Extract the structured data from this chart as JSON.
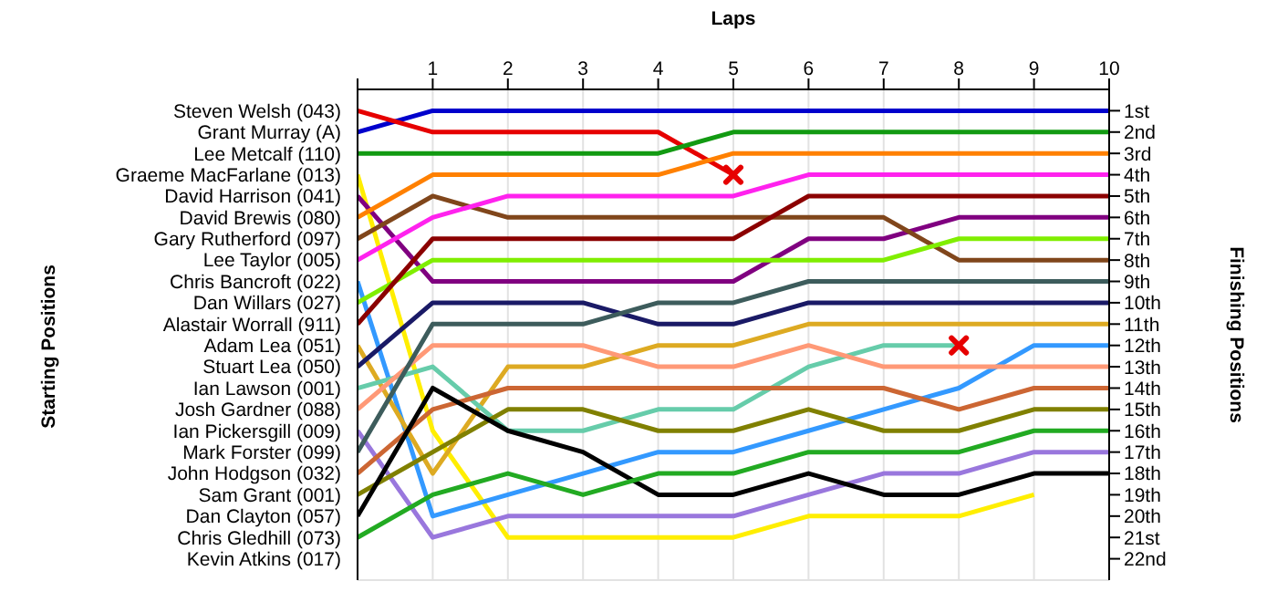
{
  "chart_data": {
    "type": "line",
    "xlabel": "Laps",
    "ylabel": "Finishing Positions",
    "x": [
      0,
      1,
      2,
      3,
      4,
      5,
      6,
      7,
      8,
      9,
      10
    ],
    "xlim": [
      0,
      10
    ],
    "xticks": [
      {
        "value": 0,
        "label": null
      },
      1,
      2,
      3,
      4,
      5,
      6,
      7,
      8,
      9,
      10
    ],
    "ylim": [
      23,
      0
    ],
    "yticks": [
      {
        "value": 1,
        "label": "1st"
      },
      {
        "value": 2,
        "label": "2nd"
      },
      {
        "value": 3,
        "label": "3rd"
      },
      {
        "value": 4,
        "label": "4th"
      },
      {
        "value": 5,
        "label": "5th"
      },
      {
        "value": 6,
        "label": "6th"
      },
      {
        "value": 7,
        "label": "7th"
      },
      {
        "value": 8,
        "label": "8th"
      },
      {
        "value": 9,
        "label": "9th"
      },
      {
        "value": 10,
        "label": "10th"
      },
      {
        "value": 11,
        "label": "11th"
      },
      {
        "value": 12,
        "label": "12th"
      },
      {
        "value": 13,
        "label": "13th"
      },
      {
        "value": 14,
        "label": "14th"
      },
      {
        "value": 15,
        "label": "15th"
      },
      {
        "value": 16,
        "label": "16th"
      },
      {
        "value": 17,
        "label": "17th"
      },
      {
        "value": 18,
        "label": "18th"
      },
      {
        "value": 19,
        "label": "19th"
      },
      {
        "value": 20,
        "label": "20th"
      },
      {
        "value": 21,
        "label": "21st"
      },
      {
        "value": 22,
        "label": "22nd"
      }
    ],
    "annotations": [
      "Starting Positions",
      "Kevin Atkins (017)"
    ],
    "grid": true,
    "legend": false,
    "marker": "none",
    "line_style": "solid",
    "series": [
      {
        "name": "Grant Murray (A)",
        "color": "#0000cc",
        "values": [
          2,
          1,
          1,
          1,
          1,
          1,
          1,
          1,
          1,
          1,
          1
        ]
      },
      {
        "name": "Steven Welsh (043)",
        "color": "#e60000",
        "values": [
          1,
          2,
          2,
          2,
          2,
          4,
          null,
          null,
          null,
          null,
          null
        ]
      },
      {
        "name": "Lee Metcalf (110)",
        "color": "#129a12",
        "values": [
          3,
          3,
          3,
          3,
          3,
          2,
          2,
          2,
          2,
          2,
          2
        ]
      },
      {
        "name": "Graeme MacFarlane (013)",
        "color": "#ffee00",
        "values": [
          4,
          16,
          21,
          21,
          21,
          21,
          20,
          20,
          20,
          19,
          null
        ]
      },
      {
        "name": "David Harrison (041)",
        "color": "#800080",
        "values": [
          5,
          9,
          9,
          9,
          9,
          9,
          7,
          7,
          6,
          6,
          6
        ]
      },
      {
        "name": "David Brewis (080)",
        "color": "#ff8000",
        "values": [
          6,
          4,
          4,
          4,
          4,
          3,
          3,
          3,
          3,
          3,
          3
        ]
      },
      {
        "name": "Gary Rutherford (097)",
        "color": "#80461b",
        "values": [
          7,
          5,
          6,
          6,
          6,
          6,
          6,
          6,
          8,
          8,
          8
        ]
      },
      {
        "name": "Lee Taylor (005)",
        "color": "#ff22ee",
        "values": [
          8,
          6,
          5,
          5,
          5,
          5,
          4,
          4,
          4,
          4,
          4
        ]
      },
      {
        "name": "Chris Bancroft (022)",
        "color": "#3399ff",
        "values": [
          9,
          20,
          19,
          18,
          17,
          17,
          16,
          15,
          14,
          12,
          12
        ]
      },
      {
        "name": "Dan Willars (027)",
        "color": "#80ee00",
        "values": [
          10,
          8,
          8,
          8,
          8,
          8,
          8,
          8,
          7,
          7,
          7
        ]
      },
      {
        "name": "Alastair Worrall (911)",
        "color": "#8b0000",
        "values": [
          11,
          7,
          7,
          7,
          7,
          7,
          5,
          5,
          5,
          5,
          5
        ]
      },
      {
        "name": "Adam Lea (051)",
        "color": "#ddaa22",
        "values": [
          12,
          18,
          13,
          13,
          12,
          12,
          11,
          11,
          11,
          11,
          11
        ]
      },
      {
        "name": "Stuart Lea (050)",
        "color": "#1a1a66",
        "values": [
          13,
          10,
          10,
          10,
          11,
          11,
          10,
          10,
          10,
          10,
          10
        ]
      },
      {
        "name": "Ian Lawson (001)",
        "color": "#66ccaa",
        "values": [
          14,
          13,
          16,
          16,
          15,
          15,
          13,
          12,
          12,
          null,
          null
        ]
      },
      {
        "name": "Josh Gardner (088)",
        "color": "#ff9977",
        "values": [
          15,
          12,
          12,
          12,
          13,
          13,
          12,
          13,
          13,
          13,
          13
        ]
      },
      {
        "name": "Ian Pickersgill (009)",
        "color": "#9977dd",
        "values": [
          16,
          21,
          20,
          20,
          20,
          20,
          19,
          18,
          18,
          17,
          17
        ]
      },
      {
        "name": "Mark Forster (099)",
        "color": "#3d5c5c",
        "values": [
          17,
          11,
          11,
          11,
          10,
          10,
          9,
          9,
          9,
          9,
          9
        ]
      },
      {
        "name": "John Hodgson (032)",
        "color": "#cc6633",
        "values": [
          18,
          15,
          14,
          14,
          14,
          14,
          14,
          14,
          15,
          14,
          14
        ]
      },
      {
        "name": "Sam Grant (001)",
        "color": "#808000",
        "values": [
          19,
          17,
          15,
          15,
          16,
          16,
          15,
          16,
          16,
          15,
          15
        ]
      },
      {
        "name": "Dan Clayton (057)",
        "color": "#000000",
        "values": [
          20,
          14,
          16,
          17,
          19,
          19,
          18,
          19,
          19,
          18,
          18
        ]
      },
      {
        "name": "Chris Gledhill (073)",
        "color": "#22aa22",
        "values": [
          21,
          19,
          18,
          19,
          18,
          18,
          17,
          17,
          17,
          16,
          16
        ]
      },
      {
        "type": "scatter",
        "marker": "cross",
        "color": "#e60000",
        "x": [
          5,
          8
        ],
        "values": [
          4,
          12
        ]
      }
    ]
  }
}
